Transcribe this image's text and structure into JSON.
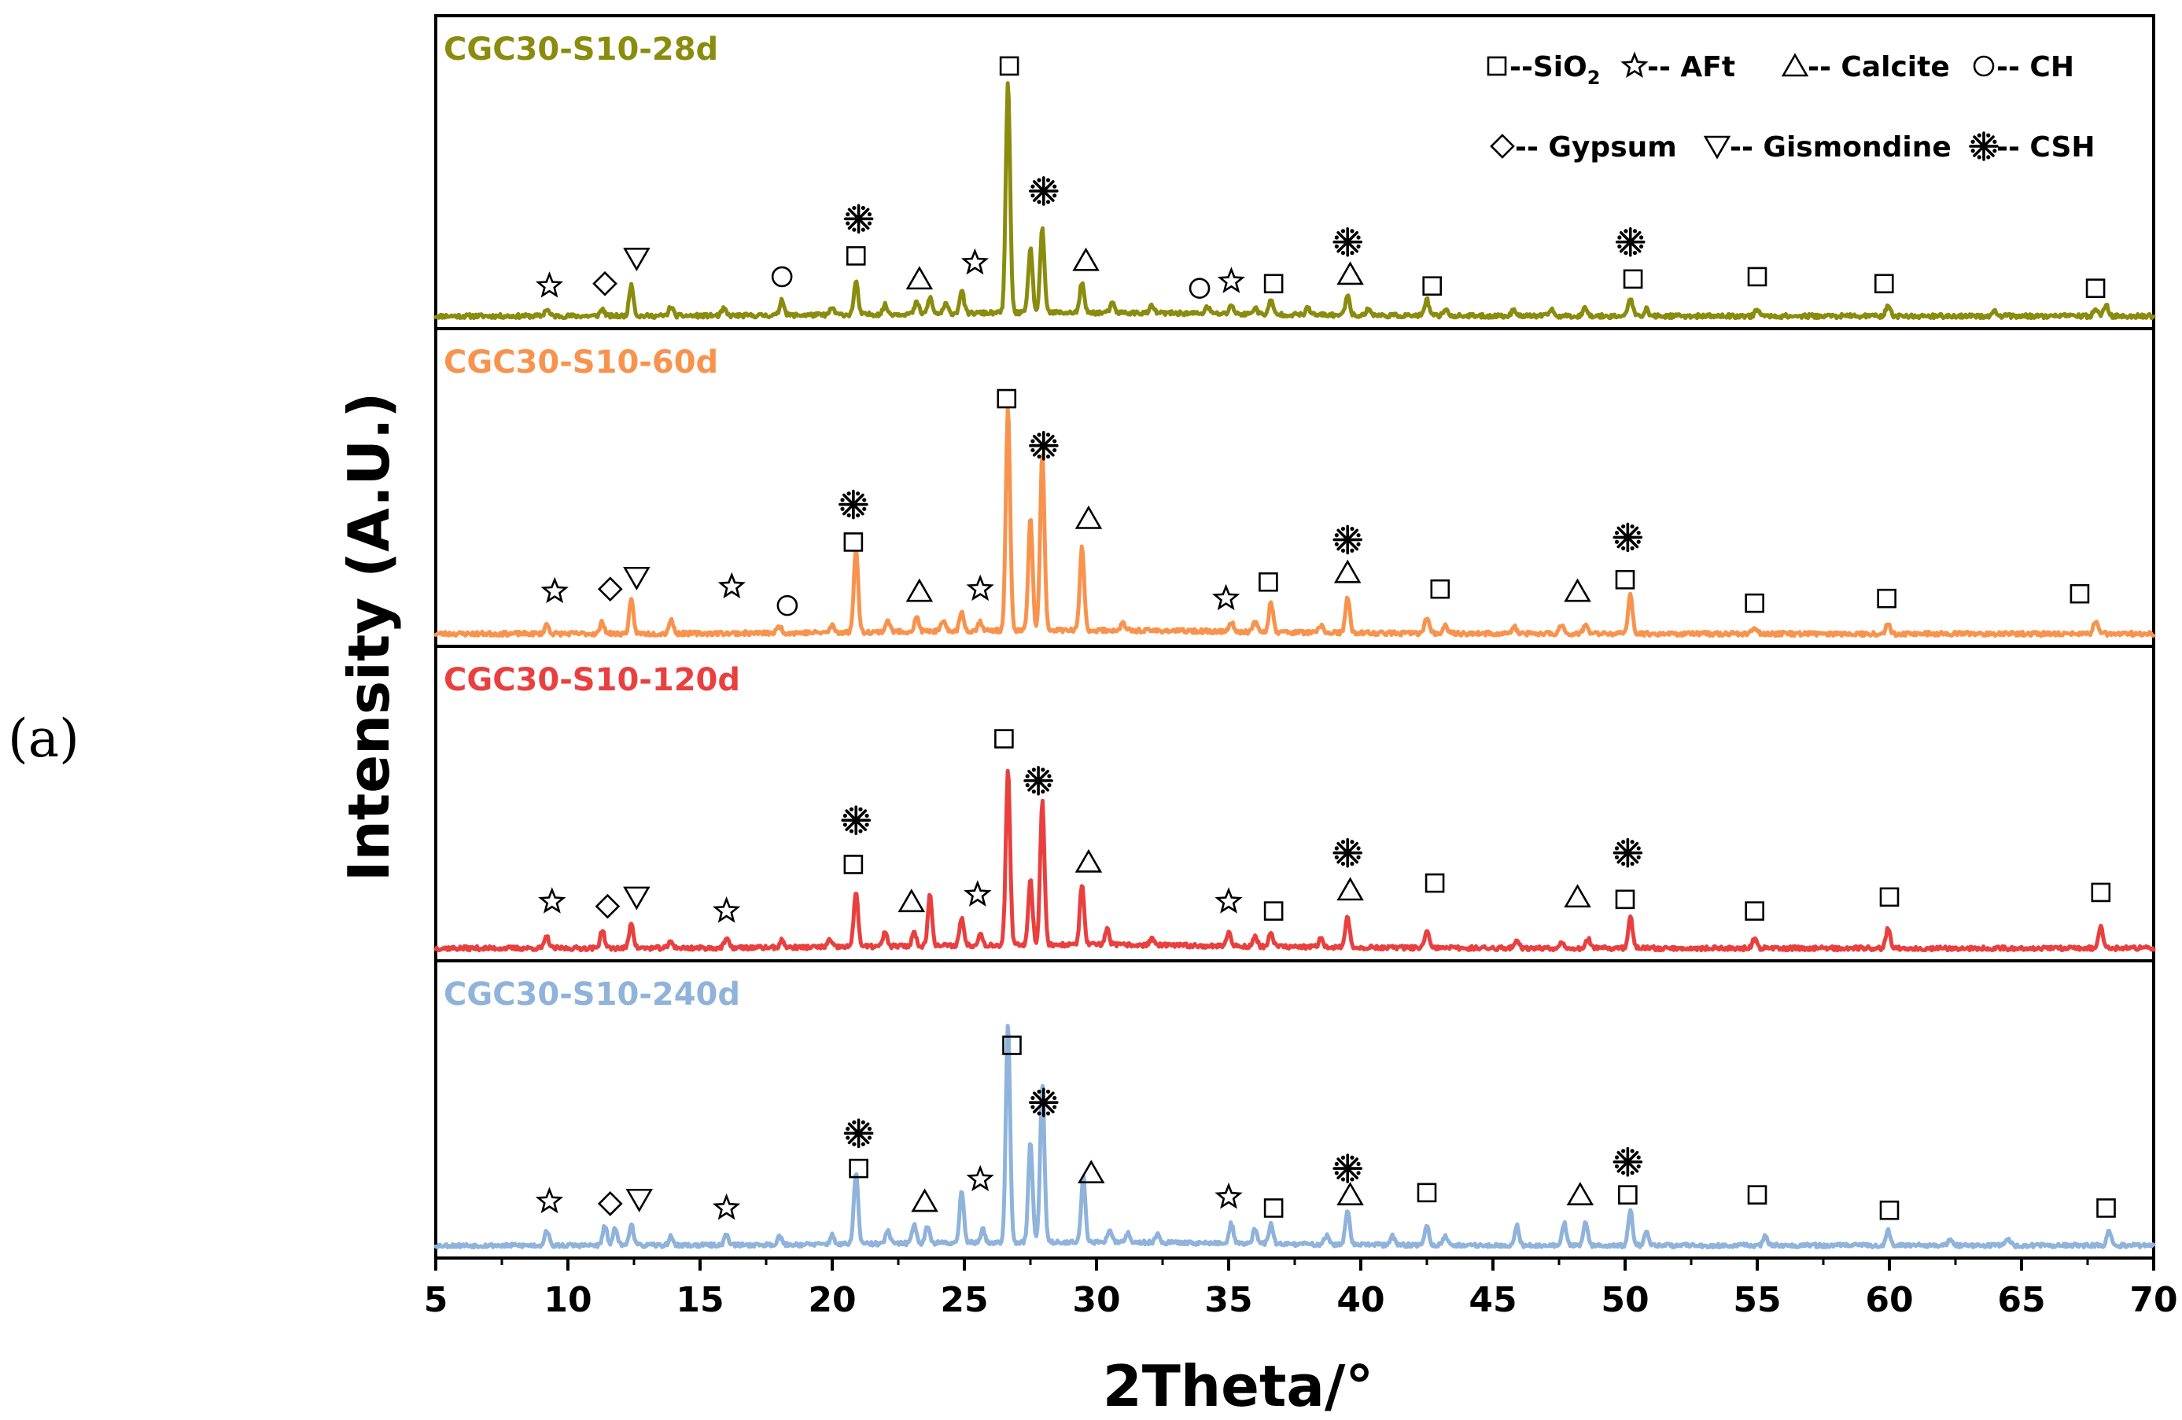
{
  "panel_label": "(a)",
  "chart_data": {
    "type": "line",
    "title": "",
    "xlabel": "2Theta/°",
    "ylabel": "Intensity (A.U.)",
    "xlim": [
      5,
      70
    ],
    "xticks": [
      5,
      10,
      15,
      20,
      25,
      30,
      35,
      40,
      45,
      50,
      55,
      60,
      65,
      70
    ],
    "grid": false,
    "legend_position": "top-right",
    "legend": [
      {
        "symbol": "square",
        "text": "--SiO",
        "sub": "2"
      },
      {
        "symbol": "star",
        "text": "-- AFt"
      },
      {
        "symbol": "triangle-up",
        "text": "-- Calcite"
      },
      {
        "symbol": "circle",
        "text": "-- CH"
      },
      {
        "symbol": "diamond",
        "text": "-- Gypsum"
      },
      {
        "symbol": "triangle-down",
        "text": "-- Gismondine"
      },
      {
        "symbol": "asterisk",
        "text": "-- CSH"
      }
    ],
    "series": [
      {
        "name": "CGC30-S10-28d",
        "color": "#8A8C0E",
        "noise_seed": 11,
        "peaks": [
          [
            9.2,
            0.03
          ],
          [
            11.3,
            0.03
          ],
          [
            12.4,
            0.14
          ],
          [
            13.9,
            0.04
          ],
          [
            15.9,
            0.03
          ],
          [
            18.1,
            0.07
          ],
          [
            20.0,
            0.03
          ],
          [
            20.9,
            0.14
          ],
          [
            22.0,
            0.04
          ],
          [
            23.2,
            0.05
          ],
          [
            23.7,
            0.07
          ],
          [
            24.3,
            0.04
          ],
          [
            24.9,
            0.1
          ],
          [
            26.65,
            1.0
          ],
          [
            27.5,
            0.28
          ],
          [
            27.95,
            0.36
          ],
          [
            29.45,
            0.13
          ],
          [
            30.6,
            0.04
          ],
          [
            32.1,
            0.03
          ],
          [
            34.2,
            0.03
          ],
          [
            35.1,
            0.04
          ],
          [
            36.0,
            0.03
          ],
          [
            36.6,
            0.06
          ],
          [
            38.0,
            0.03
          ],
          [
            39.5,
            0.09
          ],
          [
            40.3,
            0.03
          ],
          [
            42.5,
            0.07
          ],
          [
            43.2,
            0.03
          ],
          [
            45.8,
            0.03
          ],
          [
            47.2,
            0.03
          ],
          [
            48.5,
            0.04
          ],
          [
            50.2,
            0.08
          ],
          [
            50.8,
            0.03
          ],
          [
            55.0,
            0.03
          ],
          [
            59.95,
            0.05
          ],
          [
            64.0,
            0.02
          ],
          [
            67.8,
            0.03
          ],
          [
            68.2,
            0.05
          ]
        ],
        "markers": [
          {
            "type": "star",
            "x": 9.3,
            "level": 0.13
          },
          {
            "type": "diamond",
            "x": 11.4,
            "level": 0.14
          },
          {
            "type": "triangle-down",
            "x": 12.6,
            "level": 0.25
          },
          {
            "type": "circle",
            "x": 18.1,
            "level": 0.17
          },
          {
            "type": "square",
            "x": 20.9,
            "level": 0.26
          },
          {
            "type": "asterisk",
            "x": 21.0,
            "level": 0.42
          },
          {
            "type": "triangle-up",
            "x": 23.3,
            "level": 0.16
          },
          {
            "type": "star",
            "x": 25.4,
            "level": 0.23
          },
          {
            "type": "square",
            "x": 26.7,
            "level": 1.08
          },
          {
            "type": "asterisk",
            "x": 28.0,
            "level": 0.54
          },
          {
            "type": "triangle-up",
            "x": 29.6,
            "level": 0.24
          },
          {
            "type": "circle",
            "x": 33.9,
            "level": 0.12
          },
          {
            "type": "star",
            "x": 35.1,
            "level": 0.15
          },
          {
            "type": "square",
            "x": 36.7,
            "level": 0.14
          },
          {
            "type": "asterisk",
            "x": 39.5,
            "level": 0.32
          },
          {
            "type": "triangle-up",
            "x": 39.6,
            "level": 0.18
          },
          {
            "type": "square",
            "x": 42.7,
            "level": 0.13
          },
          {
            "type": "asterisk",
            "x": 50.2,
            "level": 0.32
          },
          {
            "type": "square",
            "x": 50.3,
            "level": 0.16
          },
          {
            "type": "square",
            "x": 55.0,
            "level": 0.17
          },
          {
            "type": "square",
            "x": 59.8,
            "level": 0.14
          },
          {
            "type": "square",
            "x": 67.8,
            "level": 0.12
          }
        ]
      },
      {
        "name": "CGC30-S10-60d",
        "color": "#F8934E",
        "noise_seed": 23,
        "peaks": [
          [
            9.2,
            0.04
          ],
          [
            11.3,
            0.05
          ],
          [
            12.4,
            0.14
          ],
          [
            13.9,
            0.06
          ],
          [
            18.0,
            0.03
          ],
          [
            20.0,
            0.03
          ],
          [
            20.9,
            0.36
          ],
          [
            22.1,
            0.05
          ],
          [
            23.2,
            0.06
          ],
          [
            24.2,
            0.04
          ],
          [
            24.9,
            0.08
          ],
          [
            25.6,
            0.04
          ],
          [
            26.65,
            0.95
          ],
          [
            27.5,
            0.48
          ],
          [
            27.95,
            0.75
          ],
          [
            29.45,
            0.36
          ],
          [
            31.0,
            0.03
          ],
          [
            35.1,
            0.04
          ],
          [
            36.0,
            0.04
          ],
          [
            36.6,
            0.13
          ],
          [
            38.5,
            0.03
          ],
          [
            39.5,
            0.15
          ],
          [
            42.5,
            0.07
          ],
          [
            43.2,
            0.04
          ],
          [
            45.8,
            0.03
          ],
          [
            47.6,
            0.04
          ],
          [
            48.5,
            0.04
          ],
          [
            50.2,
            0.17
          ],
          [
            54.9,
            0.03
          ],
          [
            59.95,
            0.04
          ],
          [
            67.8,
            0.05
          ]
        ],
        "markers": [
          {
            "type": "star",
            "x": 9.5,
            "level": 0.18
          },
          {
            "type": "diamond",
            "x": 11.6,
            "level": 0.19
          },
          {
            "type": "triangle-down",
            "x": 12.6,
            "level": 0.24
          },
          {
            "type": "star",
            "x": 16.2,
            "level": 0.2
          },
          {
            "type": "circle",
            "x": 18.3,
            "level": 0.12
          },
          {
            "type": "square",
            "x": 20.8,
            "level": 0.39
          },
          {
            "type": "asterisk",
            "x": 20.8,
            "level": 0.55
          },
          {
            "type": "triangle-up",
            "x": 23.3,
            "level": 0.18
          },
          {
            "type": "star",
            "x": 25.6,
            "level": 0.19
          },
          {
            "type": "square",
            "x": 26.6,
            "level": 1.0
          },
          {
            "type": "asterisk",
            "x": 28.0,
            "level": 0.8
          },
          {
            "type": "triangle-up",
            "x": 29.7,
            "level": 0.49
          },
          {
            "type": "star",
            "x": 34.9,
            "level": 0.15
          },
          {
            "type": "square",
            "x": 36.5,
            "level": 0.22
          },
          {
            "type": "asterisk",
            "x": 39.5,
            "level": 0.4
          },
          {
            "type": "triangle-up",
            "x": 39.5,
            "level": 0.26
          },
          {
            "type": "square",
            "x": 43.0,
            "level": 0.19
          },
          {
            "type": "triangle-up",
            "x": 48.2,
            "level": 0.18
          },
          {
            "type": "asterisk",
            "x": 50.1,
            "level": 0.41
          },
          {
            "type": "square",
            "x": 50.0,
            "level": 0.23
          },
          {
            "type": "square",
            "x": 54.9,
            "level": 0.13
          },
          {
            "type": "square",
            "x": 59.9,
            "level": 0.15
          },
          {
            "type": "square",
            "x": 67.2,
            "level": 0.17
          }
        ]
      },
      {
        "name": "CGC30-S10-120d",
        "color": "#E8403F",
        "noise_seed": 37,
        "peaks": [
          [
            9.2,
            0.05
          ],
          [
            11.3,
            0.08
          ],
          [
            12.4,
            0.11
          ],
          [
            13.9,
            0.03
          ],
          [
            16.0,
            0.04
          ],
          [
            18.1,
            0.03
          ],
          [
            19.9,
            0.03
          ],
          [
            20.9,
            0.24
          ],
          [
            22.0,
            0.06
          ],
          [
            23.1,
            0.06
          ],
          [
            23.7,
            0.22
          ],
          [
            24.9,
            0.12
          ],
          [
            25.6,
            0.05
          ],
          [
            26.65,
            0.75
          ],
          [
            27.5,
            0.28
          ],
          [
            27.95,
            0.62
          ],
          [
            29.45,
            0.26
          ],
          [
            30.4,
            0.07
          ],
          [
            32.1,
            0.03
          ],
          [
            35.0,
            0.06
          ],
          [
            36.0,
            0.04
          ],
          [
            36.6,
            0.06
          ],
          [
            38.5,
            0.04
          ],
          [
            39.5,
            0.13
          ],
          [
            42.5,
            0.07
          ],
          [
            45.9,
            0.04
          ],
          [
            47.6,
            0.03
          ],
          [
            48.6,
            0.04
          ],
          [
            50.2,
            0.14
          ],
          [
            54.9,
            0.04
          ],
          [
            59.95,
            0.09
          ],
          [
            68.0,
            0.1
          ]
        ],
        "markers": [
          {
            "type": "star",
            "x": 9.4,
            "level": 0.2
          },
          {
            "type": "diamond",
            "x": 11.5,
            "level": 0.18
          },
          {
            "type": "triangle-down",
            "x": 12.6,
            "level": 0.22
          },
          {
            "type": "star",
            "x": 16.0,
            "level": 0.16
          },
          {
            "type": "square",
            "x": 20.8,
            "level": 0.36
          },
          {
            "type": "asterisk",
            "x": 20.9,
            "level": 0.55
          },
          {
            "type": "triangle-up",
            "x": 23.0,
            "level": 0.2
          },
          {
            "type": "star",
            "x": 25.5,
            "level": 0.23
          },
          {
            "type": "square",
            "x": 26.5,
            "level": 0.9
          },
          {
            "type": "asterisk",
            "x": 27.8,
            "level": 0.72
          },
          {
            "type": "triangle-up",
            "x": 29.7,
            "level": 0.37
          },
          {
            "type": "star",
            "x": 35.0,
            "level": 0.2
          },
          {
            "type": "square",
            "x": 36.7,
            "level": 0.16
          },
          {
            "type": "asterisk",
            "x": 39.5,
            "level": 0.41
          },
          {
            "type": "triangle-up",
            "x": 39.6,
            "level": 0.25
          },
          {
            "type": "square",
            "x": 42.8,
            "level": 0.28
          },
          {
            "type": "triangle-up",
            "x": 48.2,
            "level": 0.22
          },
          {
            "type": "asterisk",
            "x": 50.1,
            "level": 0.41
          },
          {
            "type": "square",
            "x": 50.0,
            "level": 0.21
          },
          {
            "type": "square",
            "x": 54.9,
            "level": 0.16
          },
          {
            "type": "square",
            "x": 60.0,
            "level": 0.22
          },
          {
            "type": "square",
            "x": 68.0,
            "level": 0.24
          }
        ]
      },
      {
        "name": "CGC30-S10-240d",
        "color": "#8FB3DA",
        "noise_seed": 53,
        "peaks": [
          [
            9.2,
            0.07
          ],
          [
            11.4,
            0.09
          ],
          [
            11.8,
            0.08
          ],
          [
            12.4,
            0.1
          ],
          [
            13.9,
            0.04
          ],
          [
            16.0,
            0.05
          ],
          [
            18.0,
            0.04
          ],
          [
            20.0,
            0.04
          ],
          [
            20.9,
            0.33
          ],
          [
            22.1,
            0.06
          ],
          [
            23.1,
            0.09
          ],
          [
            23.6,
            0.08
          ],
          [
            24.9,
            0.24
          ],
          [
            25.7,
            0.06
          ],
          [
            26.65,
            1.0
          ],
          [
            27.5,
            0.46
          ],
          [
            27.95,
            0.72
          ],
          [
            29.5,
            0.3
          ],
          [
            30.5,
            0.06
          ],
          [
            31.2,
            0.04
          ],
          [
            32.3,
            0.04
          ],
          [
            35.1,
            0.09
          ],
          [
            36.0,
            0.07
          ],
          [
            36.6,
            0.09
          ],
          [
            38.7,
            0.04
          ],
          [
            39.5,
            0.16
          ],
          [
            41.2,
            0.04
          ],
          [
            42.5,
            0.09
          ],
          [
            43.2,
            0.04
          ],
          [
            45.9,
            0.09
          ],
          [
            47.7,
            0.1
          ],
          [
            48.5,
            0.11
          ],
          [
            50.2,
            0.16
          ],
          [
            50.8,
            0.06
          ],
          [
            55.3,
            0.04
          ],
          [
            59.95,
            0.07
          ],
          [
            62.3,
            0.03
          ],
          [
            64.5,
            0.03
          ],
          [
            68.3,
            0.07
          ]
        ],
        "markers": [
          {
            "type": "star",
            "x": 9.3,
            "level": 0.2
          },
          {
            "type": "diamond",
            "x": 11.6,
            "level": 0.19
          },
          {
            "type": "triangle-down",
            "x": 12.7,
            "level": 0.21
          },
          {
            "type": "star",
            "x": 16.0,
            "level": 0.17
          },
          {
            "type": "square",
            "x": 21.0,
            "level": 0.35
          },
          {
            "type": "asterisk",
            "x": 21.0,
            "level": 0.51
          },
          {
            "type": "triangle-up",
            "x": 23.5,
            "level": 0.2
          },
          {
            "type": "star",
            "x": 25.6,
            "level": 0.3
          },
          {
            "type": "square",
            "x": 26.8,
            "level": 0.91
          },
          {
            "type": "asterisk",
            "x": 28.0,
            "level": 0.65
          },
          {
            "type": "triangle-up",
            "x": 29.8,
            "level": 0.33
          },
          {
            "type": "star",
            "x": 35.0,
            "level": 0.22
          },
          {
            "type": "square",
            "x": 36.7,
            "level": 0.17
          },
          {
            "type": "asterisk",
            "x": 39.5,
            "level": 0.35
          },
          {
            "type": "triangle-up",
            "x": 39.6,
            "level": 0.23
          },
          {
            "type": "square",
            "x": 42.5,
            "level": 0.24
          },
          {
            "type": "triangle-up",
            "x": 48.3,
            "level": 0.23
          },
          {
            "type": "asterisk",
            "x": 50.1,
            "level": 0.38
          },
          {
            "type": "square",
            "x": 50.1,
            "level": 0.23
          },
          {
            "type": "square",
            "x": 55.0,
            "level": 0.23
          },
          {
            "type": "square",
            "x": 60.0,
            "level": 0.16
          },
          {
            "type": "square",
            "x": 68.2,
            "level": 0.17
          }
        ]
      }
    ]
  }
}
